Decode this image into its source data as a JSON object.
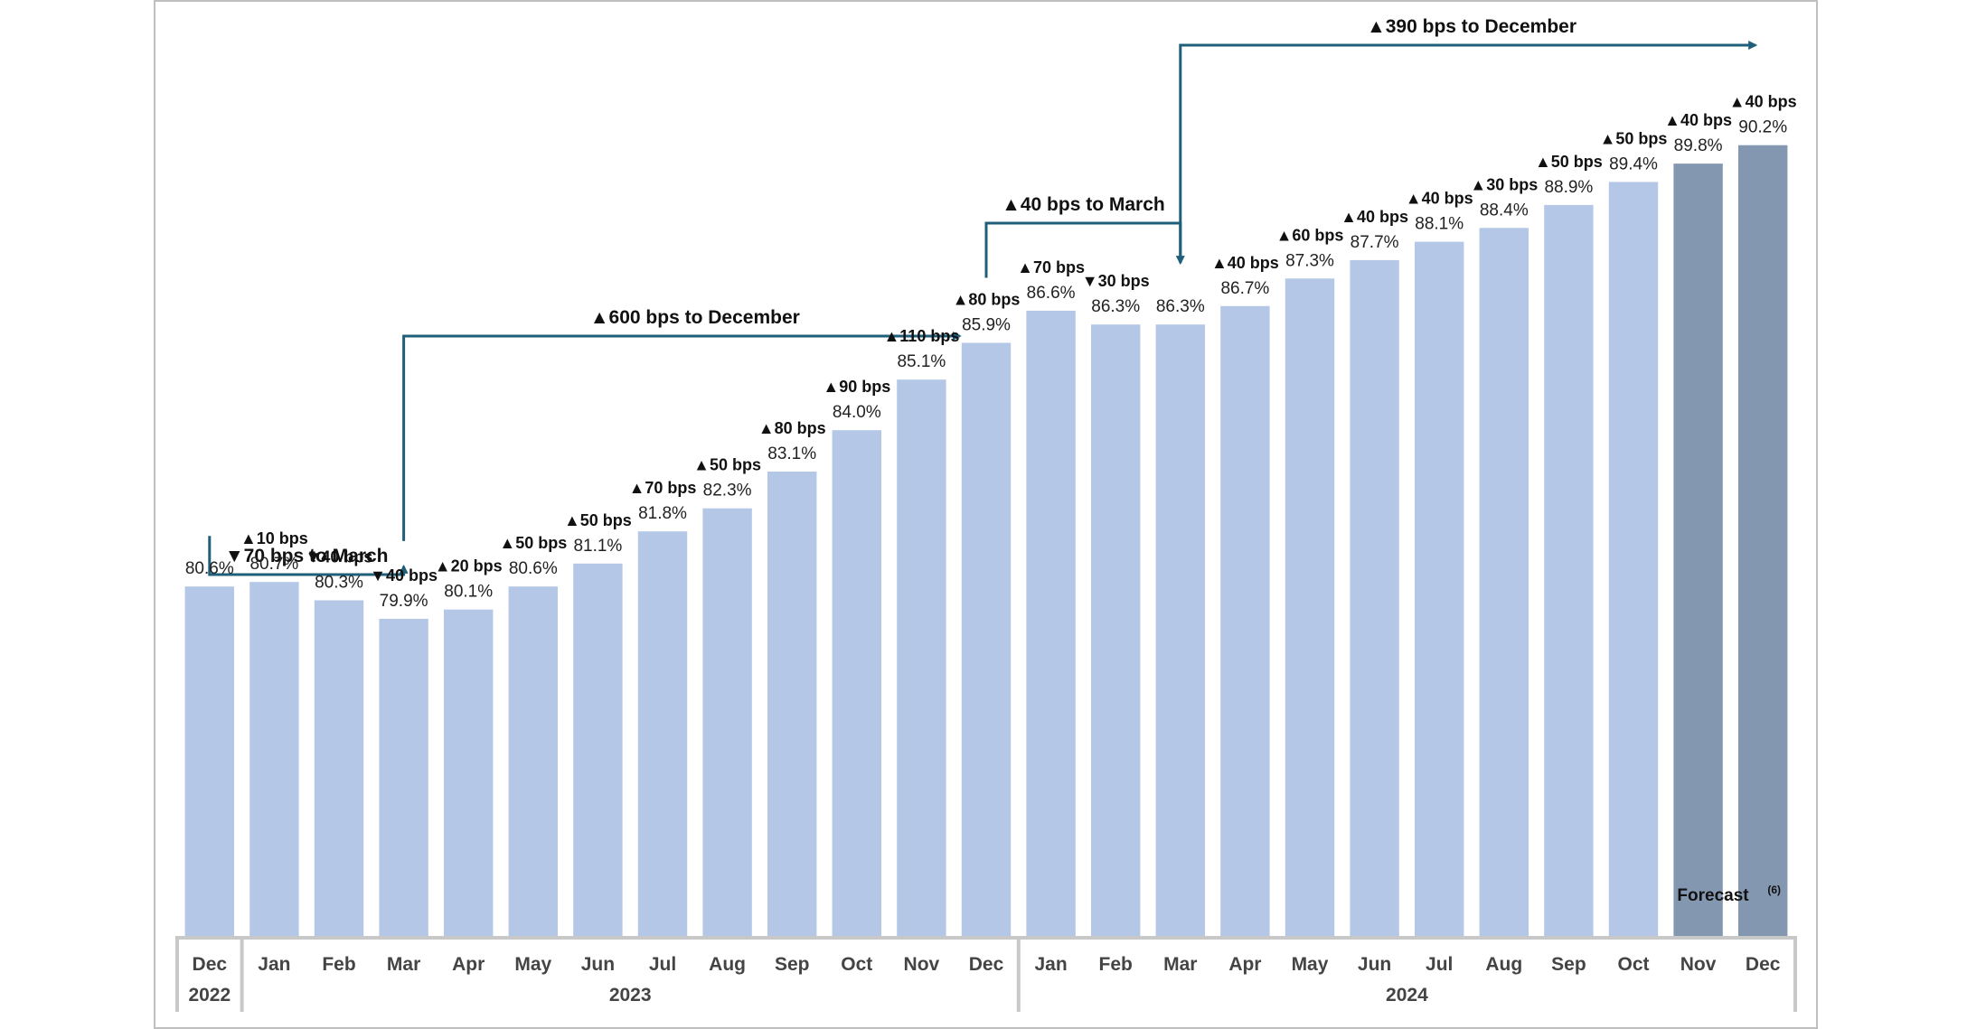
{
  "chart_data": {
    "type": "bar",
    "categories": [
      "Dec",
      "Jan",
      "Feb",
      "Mar",
      "Apr",
      "May",
      "Jun",
      "Jul",
      "Aug",
      "Sep",
      "Oct",
      "Nov",
      "Dec",
      "Jan",
      "Feb",
      "Mar",
      "Apr",
      "May",
      "Jun",
      "Jul",
      "Aug",
      "Sep",
      "Oct",
      "Nov",
      "Dec"
    ],
    "values": [
      80.6,
      80.7,
      80.3,
      79.9,
      80.1,
      80.6,
      81.1,
      81.8,
      82.3,
      83.1,
      84.0,
      85.1,
      85.9,
      86.6,
      86.3,
      86.3,
      86.7,
      87.3,
      87.7,
      88.1,
      88.4,
      88.9,
      89.4,
      89.8,
      90.2
    ],
    "value_labels": [
      "80.6%",
      "80.7%",
      "80.3%",
      "79.9%",
      "80.1%",
      "80.6%",
      "81.1%",
      "81.8%",
      "82.3%",
      "83.1%",
      "84.0%",
      "85.1%",
      "85.9%",
      "86.6%",
      "86.3%",
      "86.3%",
      "86.7%",
      "87.3%",
      "87.7%",
      "88.1%",
      "88.4%",
      "88.9%",
      "89.4%",
      "89.8%",
      "90.2%"
    ],
    "changes": [
      "",
      "▲10 bps",
      "▼40 bps",
      "▼40 bps",
      "▲20 bps",
      "▲50 bps",
      "▲50 bps",
      "▲70 bps",
      "▲50 bps",
      "▲80 bps",
      "▲90 bps",
      "▲110 bps",
      "▲80 bps",
      "▲70 bps",
      "▼30 bps",
      "",
      "▲40 bps",
      "▲60 bps",
      "▲40 bps",
      "▲40 bps",
      "▲30 bps",
      "▲50 bps",
      "▲50 bps",
      "▲40 bps",
      "▲40 bps"
    ],
    "forecast_from_index": 23,
    "ylim": [
      73,
      91
    ],
    "years": [
      {
        "label": "2022",
        "start": 0,
        "end": 0
      },
      {
        "label": "2023",
        "start": 1,
        "end": 12
      },
      {
        "label": "2024",
        "start": 13,
        "end": 24
      }
    ],
    "annotations": [
      {
        "text": "▼70 bps to March",
        "from": 0,
        "to": 3
      },
      {
        "text": "▲600 bps to December",
        "from": 3,
        "to": 12
      },
      {
        "text": "▲40 bps to March",
        "from": 12,
        "to": 15
      },
      {
        "text": "▲390 bps to December",
        "from": 15,
        "to": 24
      }
    ],
    "forecast_label": "Forecast",
    "forecast_note": "(6)",
    "colors": {
      "actual": "#b4c7e7",
      "forecast": "#8497b0",
      "arrow": "#1f5f7a",
      "axis": "#c8c8c8",
      "border": "#bfbfbf"
    }
  }
}
